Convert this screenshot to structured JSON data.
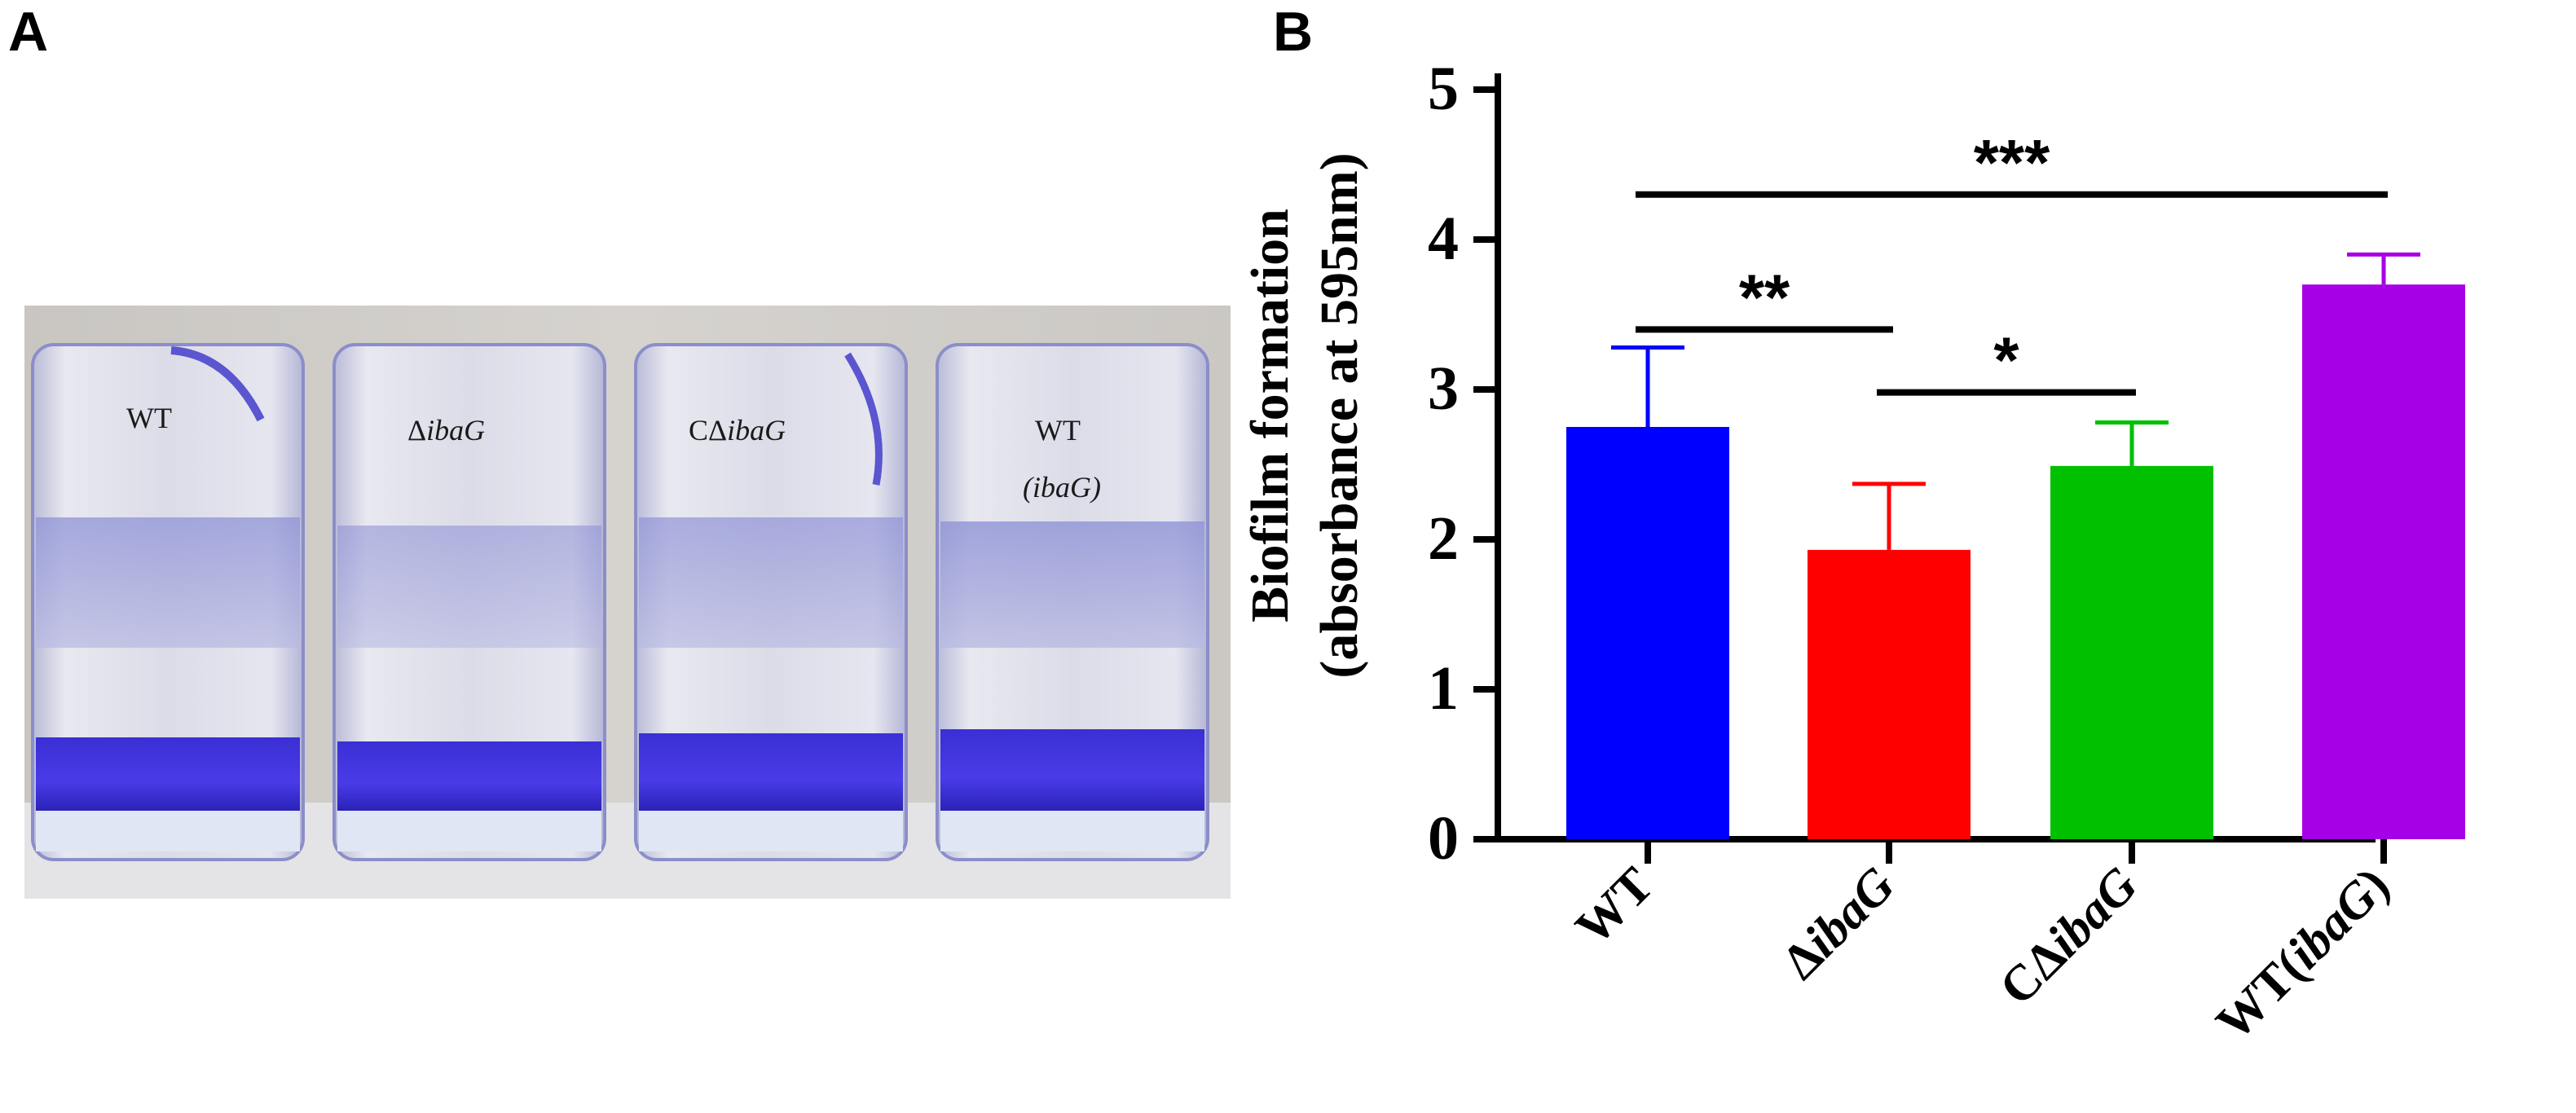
{
  "panels": {
    "a": "A",
    "b": "B"
  },
  "photo": {
    "tube_labels": [
      {
        "pre": "WT",
        "it": "",
        "line2": ""
      },
      {
        "pre": "Δ",
        "it": "ibaG",
        "line2": ""
      },
      {
        "pre": "CΔ",
        "it": "ibaG",
        "line2": ""
      },
      {
        "pre": "WT",
        "it": "",
        "line2": "(ibaG)"
      }
    ]
  },
  "chart_data": {
    "type": "bar",
    "categories": [
      {
        "pre": "WT",
        "it": "",
        "post": ""
      },
      {
        "pre": "Δ",
        "it": "ibaG",
        "post": ""
      },
      {
        "pre": "CΔ",
        "it": "ibaG",
        "post": ""
      },
      {
        "pre": "WT(",
        "it": "ibaG",
        "post": ")"
      }
    ],
    "values": [
      2.75,
      1.93,
      2.49,
      3.7
    ],
    "errors": [
      0.53,
      0.44,
      0.29,
      0.2
    ],
    "colors": [
      "#0000ff",
      "#ff0000",
      "#00c000",
      "#a600e6"
    ],
    "ylabel_line1": "Biofilm formation",
    "ylabel_line2": "(absorbance at 595nm)",
    "ylim": [
      0,
      5
    ],
    "yticks": [
      0,
      1,
      2,
      3,
      4,
      5
    ],
    "significance": [
      {
        "from": 0,
        "to": 1,
        "label": "**",
        "y": 3.4
      },
      {
        "from": 1,
        "to": 2,
        "label": "*",
        "y": 2.98
      },
      {
        "from": 0,
        "to": 3,
        "label": "***",
        "y": 4.3
      }
    ]
  }
}
